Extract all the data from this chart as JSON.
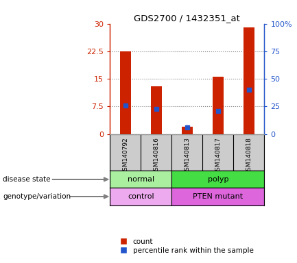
{
  "title": "GDS2700 / 1432351_at",
  "samples": [
    "GSM140792",
    "GSM140816",
    "GSM140813",
    "GSM140817",
    "GSM140818"
  ],
  "counts": [
    22.5,
    13.0,
    2.0,
    15.5,
    29.0
  ],
  "percentile_ranks": [
    26.0,
    23.0,
    6.0,
    21.0,
    40.0
  ],
  "ylim_left": [
    0,
    30
  ],
  "ylim_right": [
    0,
    100
  ],
  "yticks_left": [
    0,
    7.5,
    15,
    22.5,
    30
  ],
  "yticks_right": [
    0,
    25,
    50,
    75,
    100
  ],
  "ytick_labels_left": [
    "0",
    "7.5",
    "15",
    "22.5",
    "30"
  ],
  "ytick_labels_right": [
    "0",
    "25",
    "50",
    "75",
    "100%"
  ],
  "bar_color": "#cc2200",
  "marker_color": "#2255cc",
  "disease_state_groups": [
    {
      "label": "normal",
      "cols": [
        0,
        1
      ],
      "color": "#aaeea0"
    },
    {
      "label": "polyp",
      "cols": [
        2,
        3,
        4
      ],
      "color": "#44dd44"
    }
  ],
  "genotype_groups": [
    {
      "label": "control",
      "cols": [
        0,
        1
      ],
      "color": "#eeaaee"
    },
    {
      "label": "PTEN mutant",
      "cols": [
        2,
        3,
        4
      ],
      "color": "#dd66dd"
    }
  ],
  "label_disease_state": "disease state",
  "label_genotype": "genotype/variation",
  "legend_count": "count",
  "legend_percentile": "percentile rank within the sample",
  "grid_color": "#888888",
  "background_color": "#ffffff",
  "plot_bg": "#ffffff",
  "sample_bg": "#cccccc",
  "bar_width": 0.35
}
